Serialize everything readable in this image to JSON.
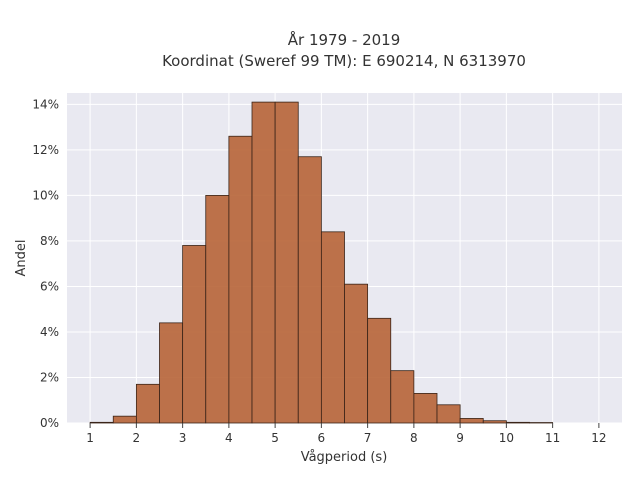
{
  "chart_data": {
    "type": "bar",
    "title_line1": "År 1979 - 2019",
    "title_line2": "Koordinat (Sweref 99 TM): E 690214, N 6313970",
    "xlabel": "Vågperiod (s)",
    "ylabel": "Andel",
    "xlim": [
      0.5,
      12.5
    ],
    "ylim": [
      0,
      14.5
    ],
    "x_ticks": [
      "1",
      "2",
      "3",
      "4",
      "5",
      "6",
      "7",
      "8",
      "9",
      "10",
      "11",
      "12"
    ],
    "y_ticks": [
      "0%",
      "2%",
      "4%",
      "6%",
      "8%",
      "10%",
      "12%",
      "14%"
    ],
    "bin_width": 0.5,
    "bins": [
      {
        "x0": 1.0,
        "value": 0.03
      },
      {
        "x0": 1.5,
        "value": 0.3
      },
      {
        "x0": 2.0,
        "value": 1.7
      },
      {
        "x0": 2.5,
        "value": 4.4
      },
      {
        "x0": 3.0,
        "value": 7.8
      },
      {
        "x0": 3.5,
        "value": 10.0
      },
      {
        "x0": 4.0,
        "value": 12.6
      },
      {
        "x0": 4.5,
        "value": 14.1
      },
      {
        "x0": 5.0,
        "value": 14.1
      },
      {
        "x0": 5.5,
        "value": 11.7
      },
      {
        "x0": 6.0,
        "value": 8.4
      },
      {
        "x0": 6.5,
        "value": 6.1
      },
      {
        "x0": 7.0,
        "value": 4.6
      },
      {
        "x0": 7.5,
        "value": 2.3
      },
      {
        "x0": 8.0,
        "value": 1.3
      },
      {
        "x0": 8.5,
        "value": 0.8
      },
      {
        "x0": 9.0,
        "value": 0.2
      },
      {
        "x0": 9.5,
        "value": 0.1
      },
      {
        "x0": 10.0,
        "value": 0.03
      },
      {
        "x0": 10.5,
        "value": 0.02
      }
    ],
    "grid": true,
    "colors": {
      "bar_fill": "#b76437",
      "bar_edge": "#3a2418",
      "plot_background": "#e9e9f1",
      "grid": "#ffffff"
    }
  }
}
